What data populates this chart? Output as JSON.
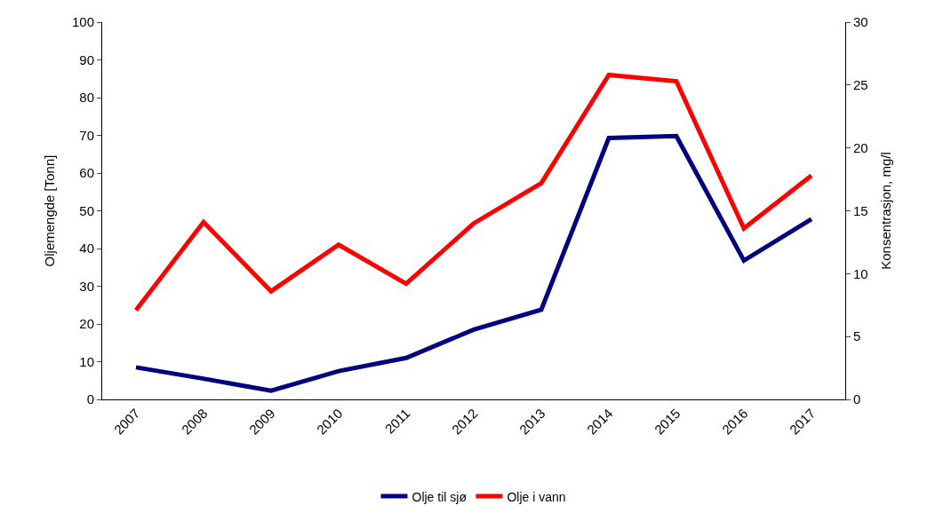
{
  "chart_data": {
    "type": "line",
    "ylabel": "Oljemengde [Tonn]",
    "y2label": "Konsentrasjon, mg/l",
    "categories": [
      "2007",
      "2008",
      "2009",
      "2010",
      "2011",
      "2012",
      "2013",
      "2014",
      "2015",
      "2016",
      "2017"
    ],
    "series": [
      {
        "name": "Olje til sjø",
        "color": "#000080",
        "values": [
          8.5,
          5.5,
          2.3,
          7.5,
          11,
          18.5,
          23.8,
          69.3,
          69.8,
          36.8,
          47.8
        ]
      },
      {
        "name": "Olje i vann",
        "color": "#ff0000",
        "axis": "y2",
        "values": [
          7.1,
          14.1,
          8.6,
          12.3,
          9.2,
          14.0,
          17.2,
          25.8,
          25.3,
          13.6,
          17.8
        ]
      }
    ],
    "ylim": [
      0,
      100
    ],
    "yticks": [
      0,
      10,
      20,
      30,
      40,
      50,
      60,
      70,
      80,
      90,
      100
    ],
    "y2lim": [
      0,
      30
    ],
    "y2ticks": [
      0,
      5,
      10,
      15,
      20,
      25,
      30
    ],
    "grid": false,
    "legend": "bottom",
    "marker": "none",
    "line_style": "solid"
  }
}
